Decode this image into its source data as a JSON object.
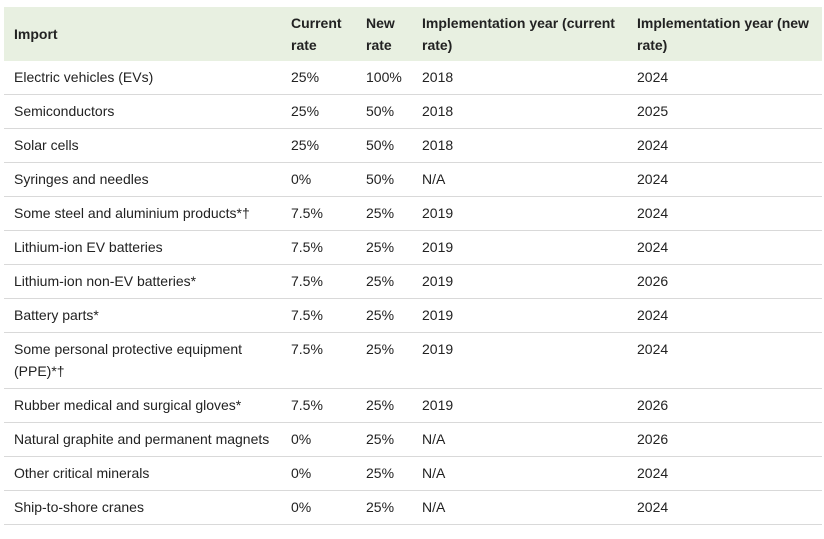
{
  "table": {
    "headers": [
      "Import",
      "Current rate",
      "New rate",
      "Implementation year (current rate)",
      "Implementation year (new rate)"
    ],
    "rows": [
      [
        "Electric vehicles (EVs)",
        "25%",
        "100%",
        "2018",
        "2024"
      ],
      [
        "Semiconductors",
        "25%",
        "50%",
        "2018",
        "2025"
      ],
      [
        "Solar cells",
        "25%",
        "50%",
        "2018",
        "2024"
      ],
      [
        "Syringes and needles",
        "0%",
        "50%",
        "N/A",
        "2024"
      ],
      [
        "Some steel and aluminium products*†",
        "7.5%",
        "25%",
        "2019",
        "2024"
      ],
      [
        "Lithium-ion EV batteries",
        "7.5%",
        "25%",
        "2019",
        "2024"
      ],
      [
        "Lithium-ion non-EV batteries*",
        "7.5%",
        "25%",
        "2019",
        "2026"
      ],
      [
        "Battery parts*",
        "7.5%",
        "25%",
        "2019",
        "2024"
      ],
      [
        "Some personal protective equipment (PPE)*†",
        "7.5%",
        "25%",
        "2019",
        "2024"
      ],
      [
        "Rubber medical and surgical gloves*",
        "7.5%",
        "25%",
        "2019",
        "2026"
      ],
      [
        "Natural graphite and permanent magnets",
        "0%",
        "25%",
        "N/A",
        "2026"
      ],
      [
        "Other critical minerals",
        "0%",
        "25%",
        "N/A",
        "2024"
      ],
      [
        "Ship-to-shore cranes",
        "0%",
        "25%",
        "N/A",
        "2024"
      ]
    ]
  }
}
